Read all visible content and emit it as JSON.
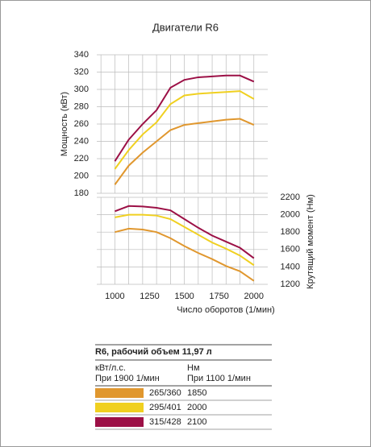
{
  "chart_data": {
    "type": "line",
    "title": "Двигатели R6",
    "x_label": "Число оборотов (1/мин)",
    "y_label": "Мощность (кВт)",
    "y2_label": "Крутящий момент (Нм)",
    "x": [
      1000,
      1100,
      1200,
      1300,
      1400,
      1500,
      1600,
      1700,
      1800,
      1900,
      2000
    ],
    "xlim": [
      870,
      2100
    ],
    "xticks": [
      1000,
      1250,
      1500,
      1750,
      2000
    ],
    "x_minor_ticks": [
      900,
      1000,
      1100,
      1200,
      1300,
      1400,
      1500,
      1600,
      1700,
      1800,
      1900,
      2000
    ],
    "ylim": [
      180,
      340
    ],
    "yticks": [
      180,
      200,
      220,
      240,
      260,
      280,
      300,
      320,
      340
    ],
    "y2lim": [
      1200,
      2200
    ],
    "y2ticks": [
      1200,
      1400,
      1600,
      1800,
      2000,
      2200
    ],
    "grid": true,
    "series": [
      {
        "name": "265/360",
        "color": "#e0972e",
        "values": [
          190,
          212,
          227,
          240,
          253,
          259,
          261,
          263,
          265,
          266,
          259
        ]
      },
      {
        "name": "295/401",
        "color": "#f0d020",
        "values": [
          208,
          230,
          248,
          262,
          283,
          293,
          295,
          296,
          297,
          298,
          289
        ]
      },
      {
        "name": "315/428",
        "color": "#9c1046",
        "values": [
          217,
          242,
          260,
          276,
          302,
          311,
          314,
          315,
          316,
          316,
          309
        ]
      },
      {
        "name": "1850",
        "color": "#e0972e",
        "axis": "y2",
        "values": [
          1800,
          1840,
          1830,
          1800,
          1730,
          1640,
          1560,
          1490,
          1410,
          1350,
          1240
        ]
      },
      {
        "name": "2000",
        "color": "#f0d020",
        "axis": "y2",
        "values": [
          1970,
          2000,
          2000,
          1990,
          1950,
          1860,
          1770,
          1680,
          1610,
          1530,
          1420
        ]
      },
      {
        "name": "2100",
        "color": "#9c1046",
        "axis": "y2",
        "values": [
          2040,
          2100,
          2095,
          2080,
          2050,
          1950,
          1850,
          1760,
          1690,
          1620,
          1500
        ]
      }
    ]
  },
  "legend": {
    "title": "R6, рабочий объем 11,97 л",
    "power_unit": "кВт/л.с.",
    "torque_unit": "Нм",
    "power_rpm": "При 1900 1/мин",
    "torque_rpm": "При 1100 1/мин"
  }
}
